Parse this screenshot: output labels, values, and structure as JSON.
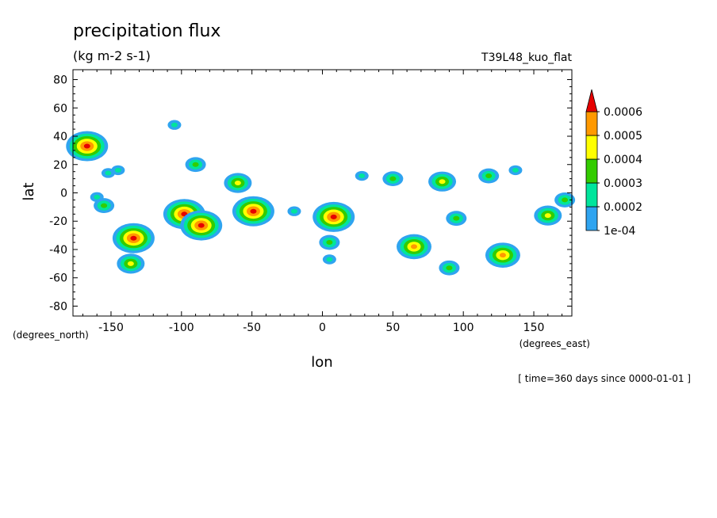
{
  "chart_data": {
    "type": "heatmap",
    "title": "precipitation flux",
    "units": "(kg m-2 s-1)",
    "model": "T39L48_kuo_flat",
    "xlabel": "lon",
    "ylabel": "lat",
    "x_units": "(degrees_east)",
    "y_units": "(degrees_north)",
    "time_note": "[ time=360 days since 0000-01-01 ]",
    "xlim": [
      -177,
      177
    ],
    "ylim": [
      -87,
      87
    ],
    "x_ticks": [
      -150,
      -100,
      -50,
      0,
      50,
      100,
      150
    ],
    "y_ticks": [
      -80,
      -60,
      -40,
      -20,
      0,
      20,
      40,
      60,
      80
    ],
    "x_tick_labels": [
      "-150",
      "-100",
      "-50",
      "0",
      "50",
      "100",
      "150"
    ],
    "y_tick_labels": [
      "-80",
      "-60",
      "-40",
      "-20",
      "0",
      "20",
      "40",
      "60",
      "80"
    ],
    "levels": [
      0.0001,
      0.0002,
      0.0003,
      0.0004,
      0.0005,
      0.0006
    ],
    "legend_labels": [
      "1e-04",
      "0.0002",
      "0.0003",
      "0.0004",
      "0.0005",
      "0.0006"
    ],
    "colors": [
      "#2fa4f0",
      "#00e59c",
      "#33cc00",
      "#ffff00",
      "#ff9900",
      "#e60000"
    ],
    "legend_position": "right",
    "grid": false,
    "cells": [
      {
        "lon": -167,
        "lat": 33,
        "level": 6
      },
      {
        "lon": -160,
        "lat": -3,
        "level": 2
      },
      {
        "lon": -155,
        "lat": -9,
        "level": 3
      },
      {
        "lon": -152,
        "lat": 14,
        "level": 2
      },
      {
        "lon": -145,
        "lat": 16,
        "level": 2
      },
      {
        "lon": -136,
        "lat": -50,
        "level": 4
      },
      {
        "lon": -134,
        "lat": -32,
        "level": 6
      },
      {
        "lon": -105,
        "lat": 48,
        "level": 2
      },
      {
        "lon": -98,
        "lat": -15,
        "level": 6
      },
      {
        "lon": -90,
        "lat": 20,
        "level": 3
      },
      {
        "lon": -86,
        "lat": -23,
        "level": 6
      },
      {
        "lon": -60,
        "lat": 7,
        "level": 4
      },
      {
        "lon": -49,
        "lat": -13,
        "level": 6
      },
      {
        "lon": -20,
        "lat": -13,
        "level": 2
      },
      {
        "lon": 8,
        "lat": -17,
        "level": 6
      },
      {
        "lon": 5,
        "lat": -47,
        "level": 2
      },
      {
        "lon": 5,
        "lat": -35,
        "level": 3
      },
      {
        "lon": 28,
        "lat": 12,
        "level": 2
      },
      {
        "lon": 50,
        "lat": 10,
        "level": 3
      },
      {
        "lon": 65,
        "lat": -38,
        "level": 5
      },
      {
        "lon": 85,
        "lat": 8,
        "level": 4
      },
      {
        "lon": 90,
        "lat": -53,
        "level": 3
      },
      {
        "lon": 95,
        "lat": -18,
        "level": 3
      },
      {
        "lon": 118,
        "lat": 12,
        "level": 3
      },
      {
        "lon": 128,
        "lat": -44,
        "level": 5
      },
      {
        "lon": 137,
        "lat": 16,
        "level": 2
      },
      {
        "lon": 160,
        "lat": -16,
        "level": 4
      },
      {
        "lon": 172,
        "lat": -5,
        "level": 3
      }
    ]
  }
}
